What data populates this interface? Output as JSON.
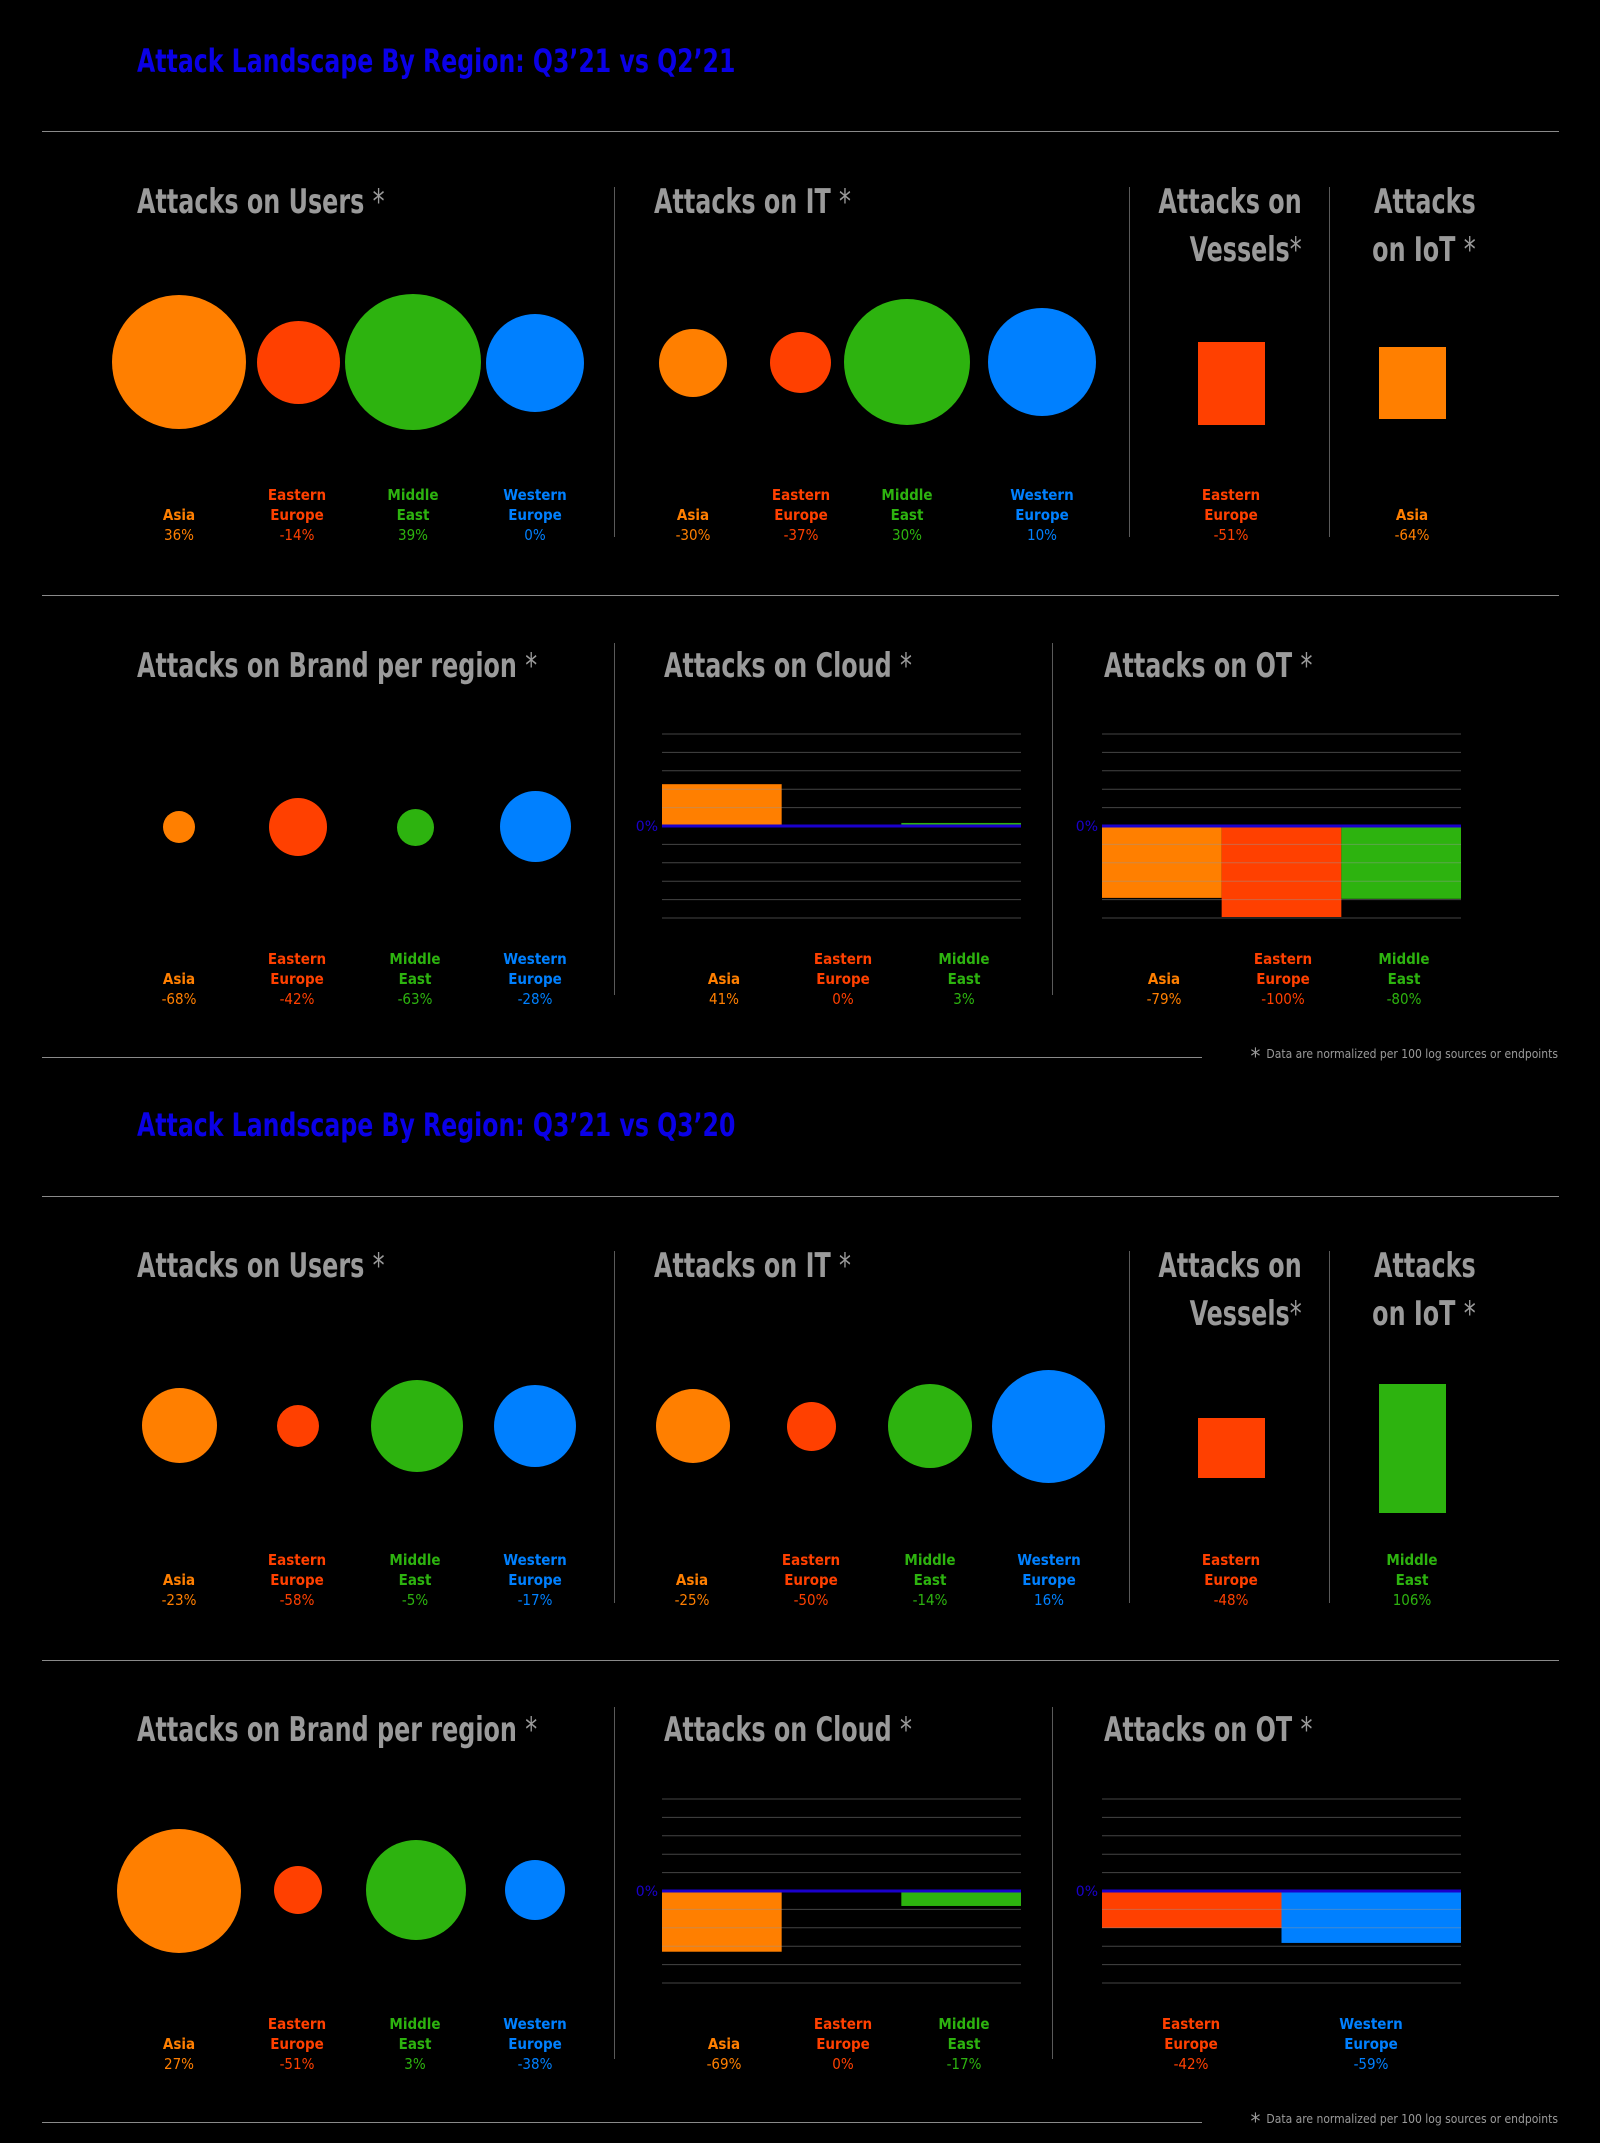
{
  "colors": {
    "asia": "#ff7f00",
    "eastern_europe": "#ff4000",
    "middle_east": "#2db30f",
    "western_europe": "#0080ff",
    "title": "#0a00e6",
    "zero": "#1a00cc"
  },
  "footnote": "Data are normalized per 100 log sources or endpoints",
  "sections": [
    {
      "title": "Attack Landscape By Region: Q3’21 vs Q2’21",
      "panels": {
        "users": {
          "title": "Attacks on Users",
          "items": [
            {
              "name": "Asia",
              "value": "36%",
              "color": "#ff7f00"
            },
            {
              "name": "Eastern\nEurope",
              "value": "-14%",
              "color": "#ff4000"
            },
            {
              "name": "Middle\nEast",
              "value": "39%",
              "color": "#2db30f"
            },
            {
              "name": "Western\nEurope",
              "value": "0%",
              "color": "#0080ff"
            }
          ]
        },
        "it": {
          "title": "Attacks on IT",
          "items": [
            {
              "name": "Asia",
              "value": "-30%",
              "color": "#ff7f00"
            },
            {
              "name": "Eastern\nEurope",
              "value": "-37%",
              "color": "#ff4000"
            },
            {
              "name": "Middle\nEast",
              "value": "30%",
              "color": "#2db30f"
            },
            {
              "name": "Western\nEurope",
              "value": "10%",
              "color": "#0080ff"
            }
          ]
        },
        "vessels": {
          "title_line1": "Attacks on",
          "title_line2": "Vessels",
          "items": [
            {
              "name": "Eastern\nEurope",
              "value": "-51%",
              "color": "#ff4000"
            }
          ]
        },
        "iot": {
          "title_line1": "Attacks",
          "title_line2": "on IoT",
          "items": [
            {
              "name": "Asia",
              "value": "-64%",
              "color": "#ff7f00"
            }
          ]
        },
        "brand": {
          "title": "Attacks on Brand per region",
          "items": [
            {
              "name": "Asia",
              "value": "-68%",
              "color": "#ff7f00"
            },
            {
              "name": "Eastern\nEurope",
              "value": "-42%",
              "color": "#ff4000"
            },
            {
              "name": "Middle\nEast",
              "value": "-63%",
              "color": "#2db30f"
            },
            {
              "name": "Western\nEurope",
              "value": "-28%",
              "color": "#0080ff"
            }
          ]
        },
        "cloud": {
          "title": "Attacks on Cloud",
          "zero_label": "0%",
          "items": [
            {
              "name": "Asia",
              "value": "41%",
              "color": "#ff7f00"
            },
            {
              "name": "Eastern\nEurope",
              "value": "0%",
              "color": "#ff4000"
            },
            {
              "name": "Middle\nEast",
              "value": "3%",
              "color": "#2db30f"
            }
          ]
        },
        "ot": {
          "title": "Attacks on OT",
          "zero_label": "0%",
          "items": [
            {
              "name": "Asia",
              "value": "-79%",
              "color": "#ff7f00"
            },
            {
              "name": "Eastern\nEurope",
              "value": "-100%",
              "color": "#ff4000"
            },
            {
              "name": "Middle\nEast",
              "value": "-80%",
              "color": "#2db30f"
            }
          ]
        }
      }
    },
    {
      "title": "Attack Landscape By Region: Q3’21 vs Q3’20",
      "panels": {
        "users": {
          "title": "Attacks on Users",
          "items": [
            {
              "name": "Asia",
              "value": "-23%",
              "color": "#ff7f00"
            },
            {
              "name": "Eastern\nEurope",
              "value": "-58%",
              "color": "#ff4000"
            },
            {
              "name": "Middle\nEast",
              "value": "-5%",
              "color": "#2db30f"
            },
            {
              "name": "Western\nEurope",
              "value": "-17%",
              "color": "#0080ff"
            }
          ]
        },
        "it": {
          "title": "Attacks on IT",
          "items": [
            {
              "name": "Asia",
              "value": "-25%",
              "color": "#ff7f00"
            },
            {
              "name": "Eastern\nEurope",
              "value": "-50%",
              "color": "#ff4000"
            },
            {
              "name": "Middle\nEast",
              "value": "-14%",
              "color": "#2db30f"
            },
            {
              "name": "Western\nEurope",
              "value": "16%",
              "color": "#0080ff"
            }
          ]
        },
        "vessels": {
          "title_line1": "Attacks on",
          "title_line2": "Vessels",
          "items": [
            {
              "name": "Eastern\nEurope",
              "value": "-48%",
              "color": "#ff4000"
            }
          ]
        },
        "iot": {
          "title_line1": "Attacks",
          "title_line2": "on IoT",
          "items": [
            {
              "name": "Middle\nEast",
              "value": "106%",
              "color": "#2db30f"
            }
          ]
        },
        "brand": {
          "title": "Attacks on Brand per region",
          "items": [
            {
              "name": "Asia",
              "value": "27%",
              "color": "#ff7f00"
            },
            {
              "name": "Eastern\nEurope",
              "value": "-51%",
              "color": "#ff4000"
            },
            {
              "name": "Middle\nEast",
              "value": "3%",
              "color": "#2db30f"
            },
            {
              "name": "Western\nEurope",
              "value": "-38%",
              "color": "#0080ff"
            }
          ]
        },
        "cloud": {
          "title": "Attacks on Cloud",
          "zero_label": "0%",
          "items": [
            {
              "name": "Asia",
              "value": "-69%",
              "color": "#ff7f00"
            },
            {
              "name": "Eastern\nEurope",
              "value": "0%",
              "color": "#ff4000"
            },
            {
              "name": "Middle\nEast",
              "value": "-17%",
              "color": "#2db30f"
            }
          ]
        },
        "ot": {
          "title": "Attacks on OT",
          "zero_label": "0%",
          "items": [
            {
              "name": "Eastern\nEurope",
              "value": "-42%",
              "color": "#ff4000"
            },
            {
              "name": "Western\nEurope",
              "value": "-59%",
              "color": "#0080ff"
            }
          ]
        }
      }
    }
  ],
  "chart_data": [
    {
      "type": "bar",
      "title": "Attacks on Cloud",
      "section": "Q3’21 vs Q2’21",
      "categories": [
        "Asia",
        "Eastern Europe",
        "Middle East"
      ],
      "values": [
        41,
        0,
        3
      ]
    },
    {
      "type": "bar",
      "title": "Attacks on OT",
      "section": "Q3’21 vs Q2’21",
      "categories": [
        "Asia",
        "Eastern Europe",
        "Middle East"
      ],
      "values": [
        -79,
        -100,
        -80
      ]
    },
    {
      "type": "bar",
      "title": "Attacks on Cloud",
      "section": "Q3’21 vs Q3’20",
      "categories": [
        "Asia",
        "Eastern Europe",
        "Middle East"
      ],
      "values": [
        -69,
        0,
        -17
      ]
    },
    {
      "type": "bar",
      "title": "Attacks on OT",
      "section": "Q3’21 vs Q3’20",
      "categories": [
        "Eastern Europe",
        "Western Europe"
      ],
      "values": [
        -42,
        -59
      ]
    }
  ]
}
